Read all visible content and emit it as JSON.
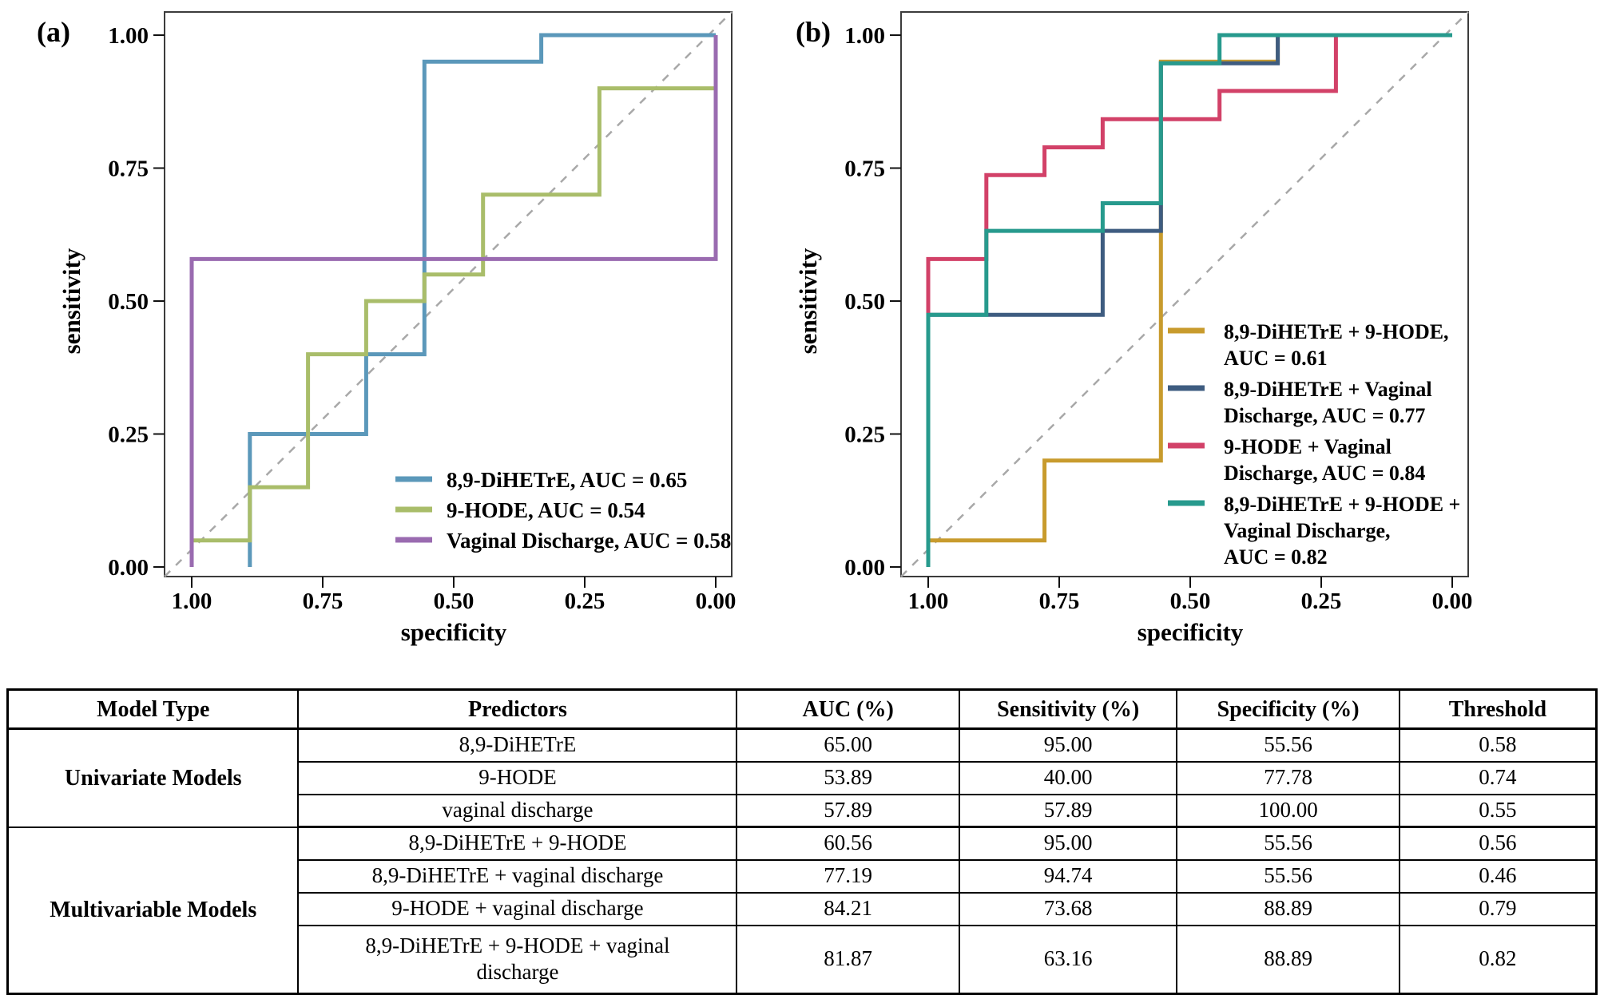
{
  "colors": {
    "axis_box": "#3c3c3c",
    "diagonal": "#a8a8a8",
    "text": "#000000"
  },
  "chart_data": [
    {
      "type": "line",
      "panel_label": "(a)",
      "xlabel": "specificity",
      "ylabel": "sensitivity",
      "xlim": [
        1.0,
        0.0
      ],
      "ylim": [
        0.0,
        1.0
      ],
      "x_ticks": [
        "1.00",
        "0.75",
        "0.50",
        "0.25",
        "0.00"
      ],
      "y_ticks": [
        "0.00",
        "0.25",
        "0.50",
        "0.75",
        "1.00"
      ],
      "x_tick_values": [
        1.0,
        0.75,
        0.5,
        0.25,
        0.0
      ],
      "y_tick_values": [
        0.0,
        0.25,
        0.5,
        0.75,
        1.0
      ],
      "grid": false,
      "diagonal_reference": true,
      "legend_position": "lower right",
      "series": [
        {
          "name": "8,9-DiHETrE",
          "auc": 0.65,
          "color": "#5b98ba",
          "points": [
            [
              0.889,
              0
            ],
            [
              0.889,
              0.25
            ],
            [
              0.667,
              0.25
            ],
            [
              0.667,
              0.4
            ],
            [
              0.556,
              0.4
            ],
            [
              0.556,
              0.95
            ],
            [
              0.333,
              0.95
            ],
            [
              0.333,
              1
            ],
            [
              0,
              1
            ]
          ]
        },
        {
          "name": "9-HODE",
          "auc": 0.54,
          "color": "#a9bd6a",
          "points": [
            [
              1,
              0
            ],
            [
              1,
              0.05
            ],
            [
              0.889,
              0.05
            ],
            [
              0.889,
              0.15
            ],
            [
              0.778,
              0.15
            ],
            [
              0.778,
              0.4
            ],
            [
              0.667,
              0.4
            ],
            [
              0.667,
              0.5
            ],
            [
              0.556,
              0.5
            ],
            [
              0.556,
              0.55
            ],
            [
              0.444,
              0.55
            ],
            [
              0.444,
              0.7
            ],
            [
              0.222,
              0.7
            ],
            [
              0.222,
              0.9
            ],
            [
              0,
              0.9
            ],
            [
              0,
              1
            ]
          ]
        },
        {
          "name": "Vaginal Discharge",
          "auc": 0.58,
          "color": "#9a6bb0",
          "points": [
            [
              1,
              0
            ],
            [
              1,
              0.579
            ],
            [
              0,
              0.579
            ],
            [
              0,
              1
            ]
          ]
        }
      ],
      "legend": [
        [
          "8,9-DiHETrE, AUC = 0.65"
        ],
        [
          "9-HODE, AUC = 0.54"
        ],
        [
          "Vaginal Discharge, AUC = 0.58"
        ]
      ]
    },
    {
      "type": "line",
      "panel_label": "(b)",
      "xlabel": "specificity",
      "ylabel": "sensitivity",
      "xlim": [
        1.0,
        0.0
      ],
      "ylim": [
        0.0,
        1.0
      ],
      "x_ticks": [
        "1.00",
        "0.75",
        "0.50",
        "0.25",
        "0.00"
      ],
      "y_ticks": [
        "0.00",
        "0.25",
        "0.50",
        "0.75",
        "1.00"
      ],
      "x_tick_values": [
        1.0,
        0.75,
        0.5,
        0.25,
        0.0
      ],
      "y_tick_values": [
        0.0,
        0.25,
        0.5,
        0.75,
        1.0
      ],
      "grid": false,
      "diagonal_reference": true,
      "legend_position": "lower right",
      "series": [
        {
          "name": "8,9-DiHETrE + 9-HODE",
          "auc": 0.61,
          "color": "#c89b2d",
          "points": [
            [
              1,
              0
            ],
            [
              1,
              0.05
            ],
            [
              0.778,
              0.05
            ],
            [
              0.778,
              0.2
            ],
            [
              0.556,
              0.2
            ],
            [
              0.556,
              0.95
            ],
            [
              0.333,
              0.95
            ],
            [
              0.333,
              1
            ],
            [
              0,
              1
            ]
          ]
        },
        {
          "name": "8,9-DiHETrE + Vaginal Discharge",
          "auc": 0.77,
          "color": "#3e5c80",
          "points": [
            [
              1,
              0
            ],
            [
              1,
              0.474
            ],
            [
              0.667,
              0.474
            ],
            [
              0.667,
              0.632
            ],
            [
              0.556,
              0.632
            ],
            [
              0.556,
              0.947
            ],
            [
              0.333,
              0.947
            ],
            [
              0.333,
              1
            ],
            [
              0,
              1
            ]
          ]
        },
        {
          "name": "9-HODE + Vaginal Discharge",
          "auc": 0.84,
          "color": "#d24168",
          "points": [
            [
              1,
              0
            ],
            [
              1,
              0.579
            ],
            [
              0.889,
              0.579
            ],
            [
              0.889,
              0.737
            ],
            [
              0.778,
              0.737
            ],
            [
              0.778,
              0.789
            ],
            [
              0.667,
              0.789
            ],
            [
              0.667,
              0.842
            ],
            [
              0.444,
              0.842
            ],
            [
              0.444,
              0.895
            ],
            [
              0.222,
              0.895
            ],
            [
              0.222,
              1
            ],
            [
              0,
              1
            ]
          ]
        },
        {
          "name": "8,9-DiHETrE + 9-HODE + Vaginal Discharge",
          "auc": 0.82,
          "color": "#279a8d",
          "points": [
            [
              1,
              0
            ],
            [
              1,
              0.474
            ],
            [
              0.889,
              0.474
            ],
            [
              0.889,
              0.632
            ],
            [
              0.667,
              0.632
            ],
            [
              0.667,
              0.684
            ],
            [
              0.556,
              0.684
            ],
            [
              0.556,
              0.947
            ],
            [
              0.444,
              0.947
            ],
            [
              0.444,
              1
            ],
            [
              0,
              1
            ]
          ]
        }
      ],
      "legend": [
        [
          "8,9-DiHETrE + 9-HODE,",
          "AUC = 0.61"
        ],
        [
          "8,9-DiHETrE + Vaginal",
          "Discharge, AUC = 0.77"
        ],
        [
          "9-HODE + Vaginal",
          "Discharge, AUC = 0.84"
        ],
        [
          "8,9-DiHETrE + 9-HODE +",
          "Vaginal Discharge,",
          "AUC = 0.82"
        ]
      ]
    }
  ],
  "table": {
    "headers": [
      "Model Type",
      "Predictors",
      "AUC (%)",
      "Sensitivity (%)",
      "Specificity (%)",
      "Threshold"
    ],
    "col_widths_pct": [
      18.3,
      27.6,
      14.0,
      13.7,
      14.0,
      12.4
    ],
    "groups": [
      {
        "model_type": "Univariate Models",
        "rows": [
          {
            "predictors": "8,9-DiHETrE",
            "auc": "65.00",
            "sensitivity": "95.00",
            "specificity": "55.56",
            "threshold": "0.58"
          },
          {
            "predictors": "9-HODE",
            "auc": "53.89",
            "sensitivity": "40.00",
            "specificity": "77.78",
            "threshold": "0.74"
          },
          {
            "predictors": "vaginal discharge",
            "auc": "57.89",
            "sensitivity": "57.89",
            "specificity": "100.00",
            "threshold": "0.55"
          }
        ]
      },
      {
        "model_type": "Multivariable Models",
        "rows": [
          {
            "predictors": "8,9-DiHETrE + 9-HODE",
            "auc": "60.56",
            "sensitivity": "95.00",
            "specificity": "55.56",
            "threshold": "0.56"
          },
          {
            "predictors": "8,9-DiHETrE + vaginal discharge",
            "auc": "77.19",
            "sensitivity": "94.74",
            "specificity": "55.56",
            "threshold": "0.46"
          },
          {
            "predictors": "9-HODE + vaginal discharge",
            "auc": "84.21",
            "sensitivity": "73.68",
            "specificity": "88.89",
            "threshold": "0.79"
          },
          {
            "predictors": "8,9-DiHETrE + 9-HODE + vaginal discharge",
            "auc": "81.87",
            "sensitivity": "63.16",
            "specificity": "88.89",
            "threshold": "0.82"
          }
        ]
      }
    ]
  }
}
